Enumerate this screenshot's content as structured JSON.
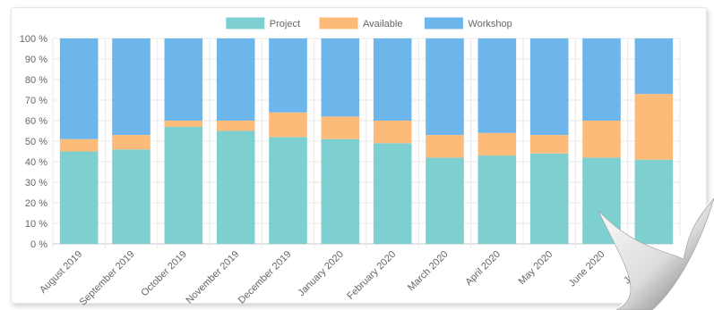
{
  "chart_data": {
    "type": "bar",
    "stacked": true,
    "categories": [
      "August 2019",
      "September 2019",
      "October 2019",
      "November 2019",
      "December 2019",
      "January 2020",
      "February 2020",
      "March 2020",
      "April 2020",
      "May 2020",
      "June 2020",
      "July 2020"
    ],
    "series": [
      {
        "name": "Project",
        "color": "#7ecfd0",
        "values": [
          45,
          46,
          57,
          55,
          52,
          51,
          49,
          42,
          43,
          44,
          42,
          41
        ]
      },
      {
        "name": "Available",
        "color": "#fdbb7a",
        "values": [
          6,
          7,
          3,
          5,
          12,
          11,
          11,
          11,
          11,
          9,
          18,
          32
        ]
      },
      {
        "name": "Workshop",
        "color": "#6cb6ec",
        "values": [
          49,
          47,
          40,
          40,
          36,
          38,
          40,
          47,
          46,
          47,
          40,
          27
        ]
      }
    ],
    "yticks": [
      "0 %",
      "10 %",
      "20 %",
      "30 %",
      "40 %",
      "50 %",
      "60 %",
      "70 %",
      "80 %",
      "90 %",
      "100 %"
    ],
    "ylim": [
      0,
      100
    ],
    "grid": true,
    "legend_position": "top-center",
    "title": "",
    "xlabel": "",
    "ylabel": ""
  }
}
